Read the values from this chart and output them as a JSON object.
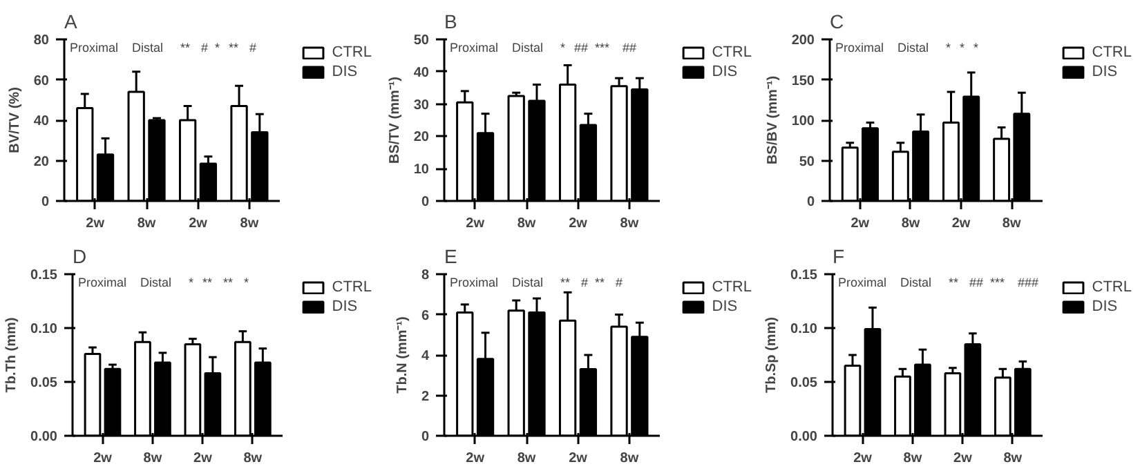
{
  "chart_data": [
    {
      "type": "bar",
      "title": "A",
      "ylabel": "BV/TV (%)",
      "categories": [
        "2w",
        "8w",
        "2w",
        "8w"
      ],
      "ylim": [
        0,
        80
      ],
      "yticks": [
        0,
        20,
        40,
        60,
        80
      ],
      "grid": false,
      "legend": "top right",
      "series": [
        {
          "name": "CTRL",
          "color": "#ffffff",
          "values": [
            46,
            54,
            40,
            47
          ],
          "errors": [
            [
              46,
              53
            ],
            [
              54,
              64
            ],
            [
              40,
              47
            ],
            [
              47,
              57
            ]
          ]
        },
        {
          "name": "DIS",
          "color": "#000000",
          "values": [
            23,
            40,
            18.5,
            34
          ],
          "errors": [
            [
              23,
              31
            ],
            [
              40,
              41
            ],
            [
              18.5,
              22
            ],
            [
              34,
              43
            ]
          ]
        }
      ],
      "annotations": [
        "Proximal",
        "Distal",
        "**",
        "#",
        "*",
        "**",
        "#"
      ]
    },
    {
      "type": "bar",
      "title": "B",
      "ylabel": "BS/TV (mm⁻¹)",
      "categories": [
        "2w",
        "8w",
        "2w",
        "8w"
      ],
      "ylim": [
        0,
        50
      ],
      "yticks": [
        0,
        10,
        20,
        30,
        40,
        50
      ],
      "grid": false,
      "legend": "top right",
      "series": [
        {
          "name": "CTRL",
          "color": "#ffffff",
          "values": [
            30.5,
            32.5,
            36,
            35.5
          ],
          "errors": [
            [
              30.5,
              34
            ],
            [
              32.5,
              33.5
            ],
            [
              36,
              42
            ],
            [
              35.5,
              38
            ]
          ]
        },
        {
          "name": "DIS",
          "color": "#000000",
          "values": [
            21,
            31,
            23.5,
            34.5
          ],
          "errors": [
            [
              21,
              27
            ],
            [
              31,
              36
            ],
            [
              23.5,
              27
            ],
            [
              34.5,
              38
            ]
          ]
        }
      ],
      "annotations": [
        "Proximal",
        "Distal",
        "*",
        "##",
        "***",
        "##"
      ]
    },
    {
      "type": "bar",
      "title": "C",
      "ylabel": "BS/BV (mm⁻¹)",
      "categories": [
        "2w",
        "8w",
        "2w",
        "8w"
      ],
      "ylim": [
        0,
        200
      ],
      "yticks": [
        0,
        50,
        100,
        150,
        200
      ],
      "grid": false,
      "legend": "top right",
      "series": [
        {
          "name": "CTRL",
          "color": "#ffffff",
          "values": [
            66,
            61,
            97,
            77
          ],
          "errors": [
            [
              66,
              72
            ],
            [
              61,
              72
            ],
            [
              97,
              135
            ],
            [
              77,
              91
            ]
          ]
        },
        {
          "name": "DIS",
          "color": "#000000",
          "values": [
            90,
            86,
            129,
            108
          ],
          "errors": [
            [
              90,
              97
            ],
            [
              86,
              107
            ],
            [
              129,
              159
            ],
            [
              108,
              134
            ]
          ]
        }
      ],
      "annotations": [
        "Proximal",
        "Distal",
        "*",
        "*",
        "*"
      ]
    },
    {
      "type": "bar",
      "title": "D",
      "ylabel": "Tb.Th (mm)",
      "categories": [
        "2w",
        "8w",
        "2w",
        "8w"
      ],
      "ylim": [
        0,
        0.15
      ],
      "yticks": [
        {
          "value": 0,
          "label": "0.00"
        },
        {
          "value": 0.05,
          "label": "0.05"
        },
        {
          "value": 0.1,
          "label": "0.10"
        },
        {
          "value": 0.15,
          "label": "0.15"
        }
      ],
      "grid": false,
      "legend": "top right",
      "series": [
        {
          "name": "CTRL",
          "color": "#ffffff",
          "values": [
            0.076,
            0.087,
            0.085,
            0.087
          ],
          "errors": [
            [
              0.076,
              0.082
            ],
            [
              0.087,
              0.096
            ],
            [
              0.085,
              0.09
            ],
            [
              0.087,
              0.097
            ]
          ]
        },
        {
          "name": "DIS",
          "color": "#000000",
          "values": [
            0.062,
            0.068,
            0.058,
            0.068
          ],
          "errors": [
            [
              0.062,
              0.066
            ],
            [
              0.068,
              0.077
            ],
            [
              0.058,
              0.073
            ],
            [
              0.068,
              0.081
            ]
          ]
        }
      ],
      "annotations": [
        "Proximal",
        "Distal",
        "*",
        "**",
        "**",
        "*"
      ]
    },
    {
      "type": "bar",
      "title": "E",
      "ylabel": "Tb.N (mm⁻¹)",
      "categories": [
        "2w",
        "8w",
        "2w",
        "8w"
      ],
      "ylim": [
        0,
        8
      ],
      "yticks": [
        0,
        2,
        4,
        6,
        8
      ],
      "grid": false,
      "legend": "top right",
      "series": [
        {
          "name": "CTRL",
          "color": "#ffffff",
          "values": [
            6.1,
            6.2,
            5.7,
            5.4
          ],
          "errors": [
            [
              6.1,
              6.5
            ],
            [
              6.2,
              6.7
            ],
            [
              5.7,
              7.1
            ],
            [
              5.4,
              6.0
            ]
          ]
        },
        {
          "name": "DIS",
          "color": "#000000",
          "values": [
            3.8,
            6.1,
            3.3,
            4.9
          ],
          "errors": [
            [
              3.8,
              5.1
            ],
            [
              6.1,
              6.8
            ],
            [
              3.3,
              4.0
            ],
            [
              4.9,
              5.6
            ]
          ]
        }
      ],
      "annotations": [
        "Proximal",
        "Distal",
        "**",
        "#",
        "**",
        "#"
      ]
    },
    {
      "type": "bar",
      "title": "F",
      "ylabel": "Tb.Sp (mm)",
      "categories": [
        "2w",
        "8w",
        "2w",
        "8w"
      ],
      "ylim": [
        0,
        0.15
      ],
      "yticks": [
        {
          "value": 0,
          "label": "0.00"
        },
        {
          "value": 0.05,
          "label": "0.05"
        },
        {
          "value": 0.1,
          "label": "0.10"
        },
        {
          "value": 0.15,
          "label": "0.15"
        }
      ],
      "grid": false,
      "legend": "top right",
      "series": [
        {
          "name": "CTRL",
          "color": "#ffffff",
          "values": [
            0.065,
            0.055,
            0.058,
            0.054
          ],
          "errors": [
            [
              0.065,
              0.075
            ],
            [
              0.055,
              0.062
            ],
            [
              0.058,
              0.063
            ],
            [
              0.054,
              0.062
            ]
          ]
        },
        {
          "name": "DIS",
          "color": "#000000",
          "values": [
            0.099,
            0.066,
            0.085,
            0.062
          ],
          "errors": [
            [
              0.099,
              0.119
            ],
            [
              0.066,
              0.08
            ],
            [
              0.085,
              0.095
            ],
            [
              0.062,
              0.069
            ]
          ]
        }
      ],
      "annotations": [
        "Proximal",
        "Distal",
        "**",
        "##",
        "***",
        "###"
      ]
    }
  ]
}
